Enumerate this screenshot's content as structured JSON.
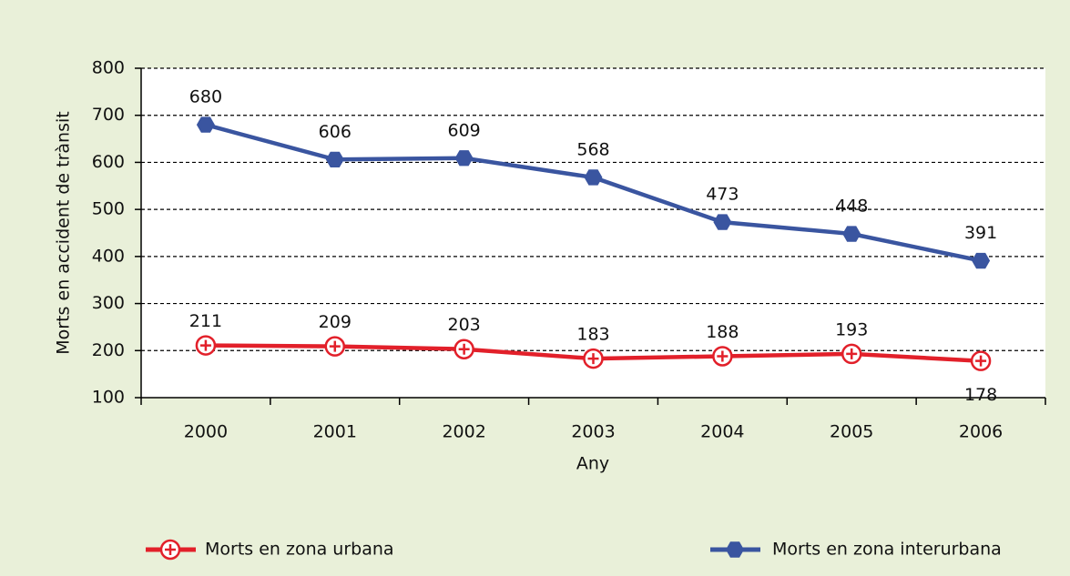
{
  "chart_data": {
    "type": "line",
    "x_label": "Any",
    "y_label": "Morts en accident de trànsit",
    "categories": [
      "2000",
      "2001",
      "2002",
      "2003",
      "2004",
      "2005",
      "2006"
    ],
    "series": [
      {
        "name": "Morts en zona urbana",
        "color": "#e2202a",
        "marker": "circle-plus",
        "values": [
          211,
          209,
          203,
          183,
          188,
          193,
          178
        ]
      },
      {
        "name": "Morts en zona interurbana",
        "color": "#3a55a0",
        "marker": "hexagon",
        "values": [
          680,
          606,
          609,
          568,
          473,
          448,
          391
        ]
      }
    ],
    "ylim": [
      100,
      800
    ],
    "yticks": [
      100,
      200,
      300,
      400,
      500,
      600,
      700,
      800
    ],
    "grid": true
  }
}
